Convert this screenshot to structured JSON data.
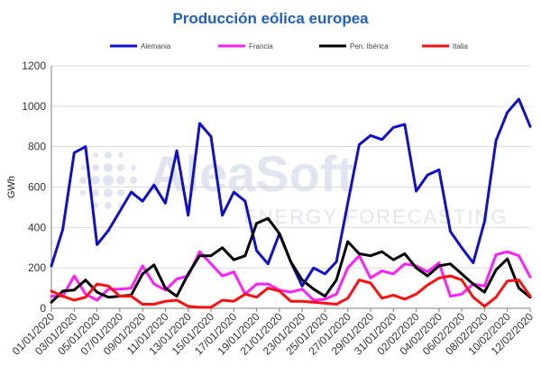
{
  "chart_data": {
    "type": "line",
    "title": "Producción eólica europea",
    "xlabel": "",
    "ylabel": "GWh",
    "ylim": [
      0,
      1200
    ],
    "yticks": [
      0,
      200,
      400,
      600,
      800,
      1000,
      1200
    ],
    "grid": true,
    "legend_position": "top",
    "x": [
      "01/01/2020",
      "02/01/2020",
      "03/01/2020",
      "04/01/2020",
      "05/01/2020",
      "06/01/2020",
      "07/01/2020",
      "08/01/2020",
      "09/01/2020",
      "10/01/2020",
      "11/01/2020",
      "12/01/2020",
      "13/01/2020",
      "14/01/2020",
      "15/01/2020",
      "16/01/2020",
      "17/01/2020",
      "18/01/2020",
      "19/01/2020",
      "20/01/2020",
      "21/01/2020",
      "22/01/2020",
      "23/01/2020",
      "24/01/2020",
      "25/01/2020",
      "26/01/2020",
      "27/01/2020",
      "28/01/2020",
      "29/01/2020",
      "30/01/2020",
      "31/01/2020",
      "01/02/2020",
      "02/02/2020",
      "03/02/2020",
      "04/02/2020",
      "05/02/2020",
      "06/02/2020",
      "07/02/2020",
      "08/02/2020",
      "09/02/2020",
      "10/02/2020",
      "11/02/2020",
      "12/02/2020"
    ],
    "xtick_labels": [
      "01/01/2020",
      "03/01/2020",
      "05/01/2020",
      "07/01/2020",
      "09/01/2020",
      "11/01/2020",
      "13/01/2020",
      "15/01/2020",
      "17/01/2020",
      "19/01/2020",
      "21/01/2020",
      "23/01/2020",
      "25/01/2020",
      "27/01/2020",
      "29/01/2020",
      "31/01/2020",
      "02/02/2020",
      "04/02/2020",
      "06/02/2020",
      "08/02/2020",
      "10/02/2020",
      "12/02/2020"
    ],
    "series": [
      {
        "name": "Alemania",
        "color": "#0f0fd1",
        "values": [
          210,
          390,
          770,
          800,
          315,
          385,
          480,
          575,
          530,
          610,
          520,
          780,
          460,
          915,
          850,
          460,
          575,
          530,
          285,
          220,
          370,
          230,
          110,
          200,
          170,
          230,
          520,
          810,
          855,
          835,
          895,
          910,
          580,
          660,
          685,
          380,
          300,
          225,
          430,
          830,
          970,
          1035,
          900
        ]
      },
      {
        "name": "Francia",
        "color": "#ff1fff",
        "values": [
          60,
          60,
          160,
          70,
          40,
          95,
          95,
          100,
          210,
          120,
          90,
          145,
          160,
          280,
          220,
          160,
          180,
          70,
          120,
          120,
          90,
          80,
          95,
          40,
          45,
          70,
          200,
          260,
          150,
          185,
          170,
          220,
          210,
          180,
          225,
          60,
          70,
          120,
          110,
          265,
          280,
          260,
          155
        ]
      },
      {
        "name": "Pen. Ibérica",
        "color": "#000000",
        "values": [
          30,
          85,
          90,
          140,
          80,
          55,
          60,
          65,
          170,
          215,
          100,
          60,
          170,
          260,
          260,
          300,
          240,
          260,
          420,
          445,
          370,
          230,
          140,
          95,
          60,
          140,
          330,
          270,
          260,
          280,
          240,
          270,
          200,
          160,
          210,
          220,
          170,
          120,
          80,
          190,
          245,
          100,
          55
        ]
      },
      {
        "name": "Italia",
        "color": "#ff0f0f",
        "values": [
          85,
          60,
          40,
          55,
          120,
          110,
          60,
          60,
          20,
          20,
          35,
          40,
          10,
          5,
          5,
          40,
          35,
          70,
          55,
          100,
          85,
          35,
          35,
          30,
          25,
          20,
          50,
          140,
          125,
          50,
          65,
          45,
          70,
          115,
          150,
          160,
          140,
          55,
          10,
          55,
          135,
          140,
          60
        ]
      }
    ]
  },
  "watermark": {
    "brand": "AleaSoft",
    "tagline": "ENERGY FORECASTING"
  }
}
